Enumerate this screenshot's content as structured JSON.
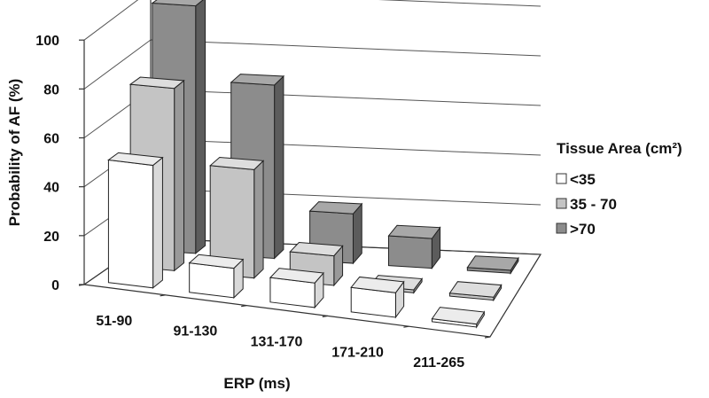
{
  "chart_data": {
    "type": "bar",
    "title": "",
    "xlabel": "ERP (ms)",
    "ylabel": "Probability of AF (%)",
    "ylim": [
      0,
      100
    ],
    "yticks": [
      "0",
      "20",
      "40",
      "60",
      "80",
      "100"
    ],
    "categories": [
      "51-90",
      "91-130",
      "131-170",
      "171-210",
      "211-265"
    ],
    "series": [
      {
        "name": "<35",
        "values": [
          50,
          12,
          10,
          10,
          0
        ],
        "color": "#ffffff",
        "side": "#d9d9d9",
        "top": "#ececec"
      },
      {
        "name": "35 - 70",
        "values": [
          74,
          44,
          12,
          0,
          0
        ],
        "color": "#c4c4c4",
        "side": "#999999",
        "top": "#dddddd"
      },
      {
        "name": ">70",
        "values": [
          100,
          70,
          20,
          12,
          0
        ],
        "color": "#8c8c8c",
        "side": "#5c5c5c",
        "top": "#a8a8a8"
      }
    ],
    "legend": {
      "title": "Tissue Area (cm²)",
      "position": "right"
    },
    "grid": true,
    "style": "3d-clustered"
  }
}
